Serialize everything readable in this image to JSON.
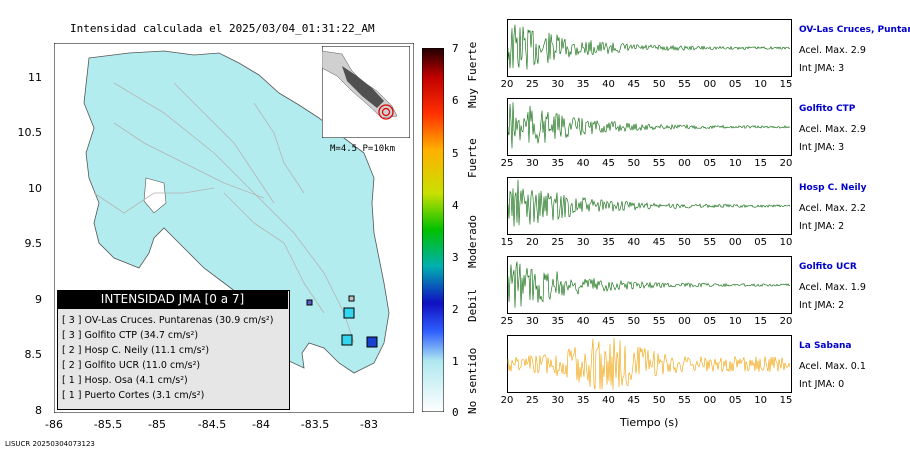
{
  "title": "Intensidad calculada el 2025/03/04_01:31:22_AM",
  "map": {
    "y_ticks": [
      "11",
      "10.5",
      "10",
      "9.5",
      "9",
      "8.5",
      "8"
    ],
    "x_ticks": [
      "-86",
      "-85.5",
      "-85",
      "-84.5",
      "-84",
      "-83.5",
      "-83"
    ],
    "inset_label": "M=4.5 P=10km"
  },
  "scale": {
    "numbers": [
      "7",
      "6",
      "5",
      "4",
      "3",
      "2",
      "1",
      "0"
    ],
    "words": [
      "Muy Fuerte",
      "Fuerte",
      "Moderado",
      "Debil",
      "No sentido"
    ]
  },
  "legend": {
    "header": "INTENSIDAD JMA [0 a 7]",
    "rows": [
      "[ 3 ] OV-Las Cruces. Puntarenas (30.9 cm/s²)",
      "[ 3 ] Golfito CTP (34.7 cm/s²)",
      "[ 2 ] Hosp C. Neily (11.1 cm/s²)",
      "[ 2 ] Golfito UCR (11.0 cm/s²)",
      "[ 1 ] Hosp. Osa (4.1 cm/s²)",
      "[ 1 ] Puerto Cortes (3.1 cm/s²)"
    ]
  },
  "stations": [
    {
      "name": "OV-Las Cruces, Puntar",
      "acel": "Acel. Max. 2.9",
      "int": "Int JMA: 3",
      "color": "#006400",
      "ticks": [
        "20",
        "25",
        "30",
        "35",
        "40",
        "45",
        "50",
        "55",
        "00",
        "05",
        "10",
        "15"
      ]
    },
    {
      "name": "Golfito CTP",
      "acel": "Acel. Max. 2.9",
      "int": "Int JMA: 3",
      "color": "#006400",
      "ticks": [
        "25",
        "30",
        "35",
        "40",
        "45",
        "50",
        "55",
        "00",
        "05",
        "10",
        "15",
        "20"
      ]
    },
    {
      "name": "Hosp C. Neily",
      "acel": "Acel. Max. 2.2",
      "int": "Int JMA: 2",
      "color": "#006400",
      "ticks": [
        "15",
        "20",
        "25",
        "30",
        "35",
        "40",
        "45",
        "50",
        "55",
        "00",
        "05",
        "10"
      ]
    },
    {
      "name": "Golfito UCR",
      "acel": "Acel. Max. 1.9",
      "int": "Int JMA: 2",
      "color": "#006400",
      "ticks": [
        "25",
        "30",
        "35",
        "40",
        "45",
        "50",
        "55",
        "00",
        "05",
        "10",
        "15",
        "20"
      ]
    },
    {
      "name": "La Sabana",
      "acel": "Acel. Max. 0.1",
      "int": "Int JMA: 0",
      "color": "#f0a000",
      "ticks": [
        "20",
        "25",
        "30",
        "35",
        "40",
        "45",
        "50",
        "55",
        "00",
        "05",
        "10",
        "15"
      ]
    }
  ],
  "time_label": "Tiempo (s)",
  "footer": "LISUCR 20250304073123",
  "colors": {
    "land": "#b3ecee",
    "sea": "#ffffff",
    "roads": "#b4b4b4",
    "trace_green": "#006400",
    "trace_orange": "#f0a000",
    "station_label": "#0000cc"
  }
}
